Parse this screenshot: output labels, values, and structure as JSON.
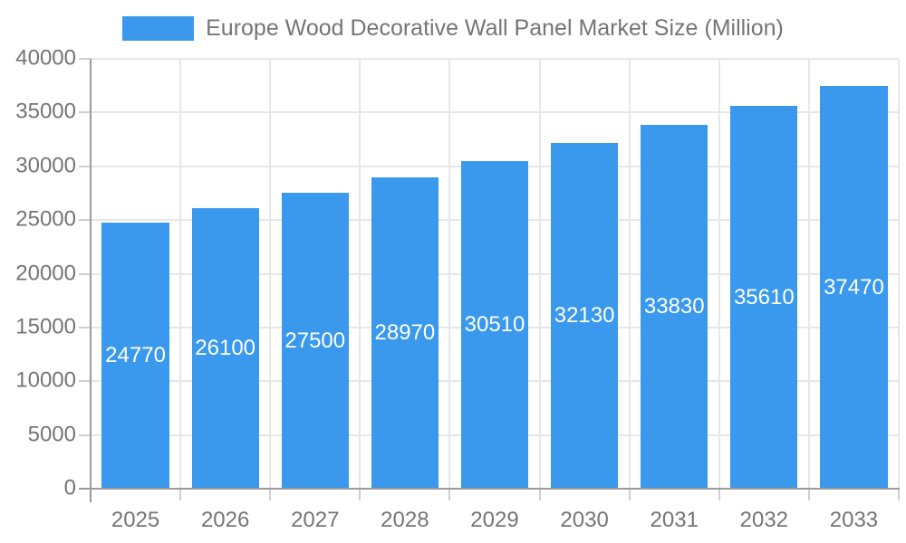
{
  "legend": {
    "label": "Europe Wood Decorative Wall Panel Market Size (Million)"
  },
  "chart_data": {
    "type": "bar",
    "title": "Europe Wood Decorative Wall Panel Market Size (Million)",
    "categories": [
      "2025",
      "2026",
      "2027",
      "2028",
      "2029",
      "2030",
      "2031",
      "2032",
      "2033"
    ],
    "values": [
      24770,
      26100,
      27500,
      28970,
      30510,
      32130,
      33830,
      35610,
      37470
    ],
    "xlabel": "",
    "ylabel": "",
    "ylim": [
      0,
      40000
    ],
    "yticks": [
      0,
      5000,
      10000,
      15000,
      20000,
      25000,
      30000,
      35000,
      40000
    ],
    "grid": true,
    "legend_position": "top",
    "bar_label_position": "center-inside",
    "colors": {
      "bar": "#3A99EC",
      "bar_label": "#FFFFFF",
      "axis_label": "#757575",
      "legend_label": "#757575",
      "grid_line": "#E7E7E7",
      "axis_line": "#9B9B9B",
      "tick_mark": "#CFCFCF",
      "background": "#FFFFFF"
    }
  }
}
